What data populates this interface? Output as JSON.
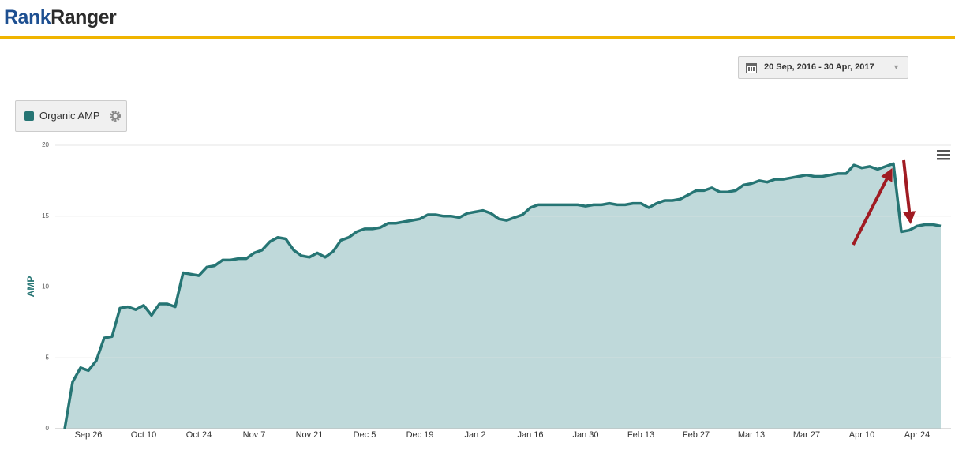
{
  "header": {
    "logo_rank": "Rank",
    "logo_ranger": "Ranger"
  },
  "date_range": "20 Sep, 2016 - 30 Apr, 2017",
  "chart_data": {
    "type": "area",
    "y_label": "AMP",
    "categories": [
      null,
      null,
      null,
      "Sep 26",
      null,
      null,
      null,
      null,
      null,
      null,
      "Oct 10",
      null,
      null,
      null,
      null,
      null,
      null,
      "Oct 24",
      null,
      null,
      null,
      null,
      null,
      null,
      "Nov 7",
      null,
      null,
      null,
      null,
      null,
      null,
      "Nov 21",
      null,
      null,
      null,
      null,
      null,
      null,
      "Dec 5",
      null,
      null,
      null,
      null,
      null,
      null,
      "Dec 19",
      null,
      null,
      null,
      null,
      null,
      null,
      "Jan 2",
      null,
      null,
      null,
      null,
      null,
      null,
      "Jan 16",
      null,
      null,
      null,
      null,
      null,
      null,
      "Jan 30",
      null,
      null,
      null,
      null,
      null,
      null,
      "Feb 13",
      null,
      null,
      null,
      null,
      null,
      null,
      "Feb 27",
      null,
      null,
      null,
      null,
      null,
      null,
      "Mar 13",
      null,
      null,
      null,
      null,
      null,
      null,
      "Mar 27",
      null,
      null,
      null,
      null,
      null,
      null,
      "Apr 10",
      null,
      null,
      null,
      null,
      null,
      null,
      "Apr 24",
      null,
      null,
      null
    ],
    "series": [
      {
        "name": "Organic AMP",
        "color": "#267574",
        "fill": "#bfd9da",
        "values": [
          0,
          3.3,
          4.3,
          4.1,
          4.8,
          6.4,
          6.5,
          8.5,
          8.6,
          8.4,
          8.7,
          8.0,
          8.8,
          8.8,
          8.6,
          11.0,
          10.9,
          10.8,
          11.4,
          11.5,
          11.9,
          11.9,
          12.0,
          12.0,
          12.4,
          12.6,
          13.2,
          13.5,
          13.4,
          12.6,
          12.2,
          12.1,
          12.4,
          12.1,
          12.5,
          13.3,
          13.5,
          13.9,
          14.1,
          14.1,
          14.2,
          14.5,
          14.5,
          14.6,
          14.7,
          14.8,
          15.1,
          15.1,
          15.0,
          15.0,
          14.9,
          15.2,
          15.3,
          15.4,
          15.2,
          14.8,
          14.7,
          14.9,
          15.1,
          15.6,
          15.8,
          15.8,
          15.8,
          15.8,
          15.8,
          15.8,
          15.7,
          15.8,
          15.8,
          15.9,
          15.8,
          15.8,
          15.9,
          15.9,
          15.6,
          15.9,
          16.1,
          16.1,
          16.2,
          16.5,
          16.8,
          16.8,
          17.0,
          16.7,
          16.7,
          16.8,
          17.2,
          17.3,
          17.5,
          17.4,
          17.6,
          17.6,
          17.7,
          17.8,
          17.9,
          17.8,
          17.8,
          17.9,
          18.0,
          18.0,
          18.6,
          18.4,
          18.5,
          18.3,
          18.5,
          18.7,
          13.9,
          14.0,
          14.3,
          14.4,
          14.4,
          14.3
        ]
      }
    ],
    "ylim": [
      0,
      20
    ],
    "yticks": [
      0,
      5,
      10,
      15,
      20
    ],
    "grid": true
  }
}
